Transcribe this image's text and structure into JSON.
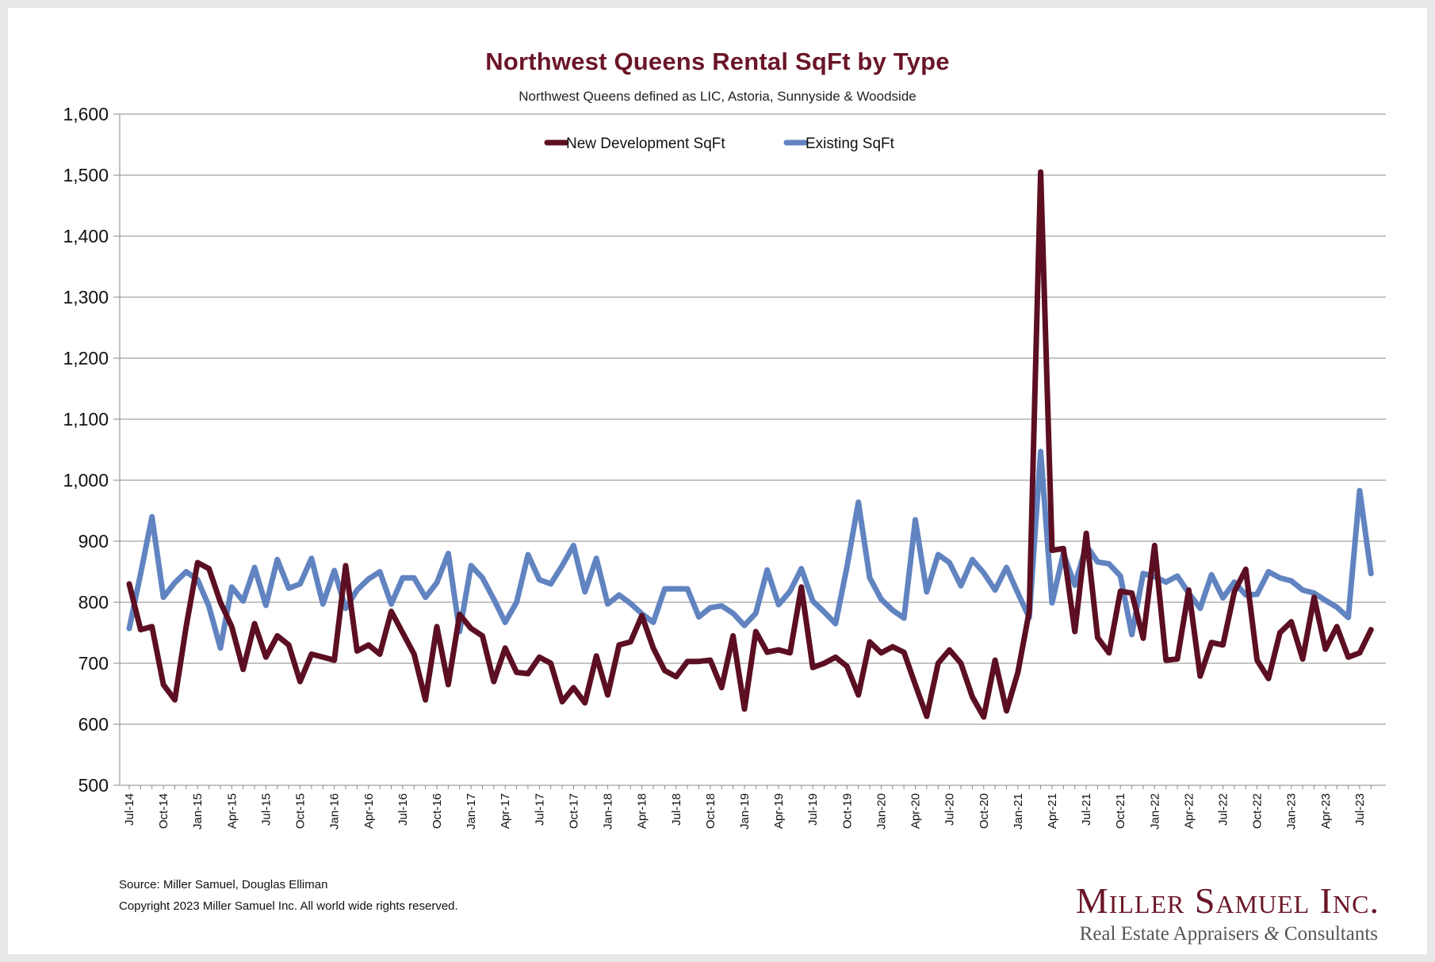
{
  "chart_data": {
    "type": "line",
    "title": "Northwest Queens Rental SqFt by Type",
    "subtitle": "Northwest Queens defined as LIC, Astoria, Sunnyside & Woodside",
    "ylim": [
      500,
      1600
    ],
    "yticks": [
      "500",
      "600",
      "700",
      "800",
      "900",
      "1,000",
      "1,100",
      "1,200",
      "1,300",
      "1,400",
      "1,500",
      "1,600"
    ],
    "ytick_values": [
      500,
      600,
      700,
      800,
      900,
      1000,
      1100,
      1200,
      1300,
      1400,
      1500,
      1600
    ],
    "xticks": [
      "Jul-14",
      "Oct-14",
      "Jan-15",
      "Apr-15",
      "Jul-15",
      "Oct-15",
      "Jan-16",
      "Apr-16",
      "Jul-16",
      "Oct-16",
      "Jan-17",
      "Apr-17",
      "Jul-17",
      "Oct-17",
      "Jan-18",
      "Apr-18",
      "Jul-18",
      "Oct-18",
      "Jan-19",
      "Apr-19",
      "Jul-19",
      "Oct-19",
      "Jan-20",
      "Apr-20",
      "Jul-20",
      "Oct-20",
      "Jan-21",
      "Apr-21",
      "Jul-21",
      "Oct-21",
      "Jan-22",
      "Apr-22",
      "Jul-22",
      "Oct-22",
      "Jan-23",
      "Apr-23",
      "Jul-23"
    ],
    "grid": true,
    "legend_position": "top-center",
    "series": [
      {
        "name": "New Development SqFt",
        "color": "#5c0f22",
        "values": [
          830,
          755,
          760,
          665,
          640,
          760,
          865,
          855,
          800,
          760,
          690,
          765,
          710,
          745,
          730,
          670,
          715,
          710,
          705,
          860,
          720,
          730,
          715,
          785,
          750,
          715,
          640,
          760,
          665,
          780,
          757,
          745,
          670,
          725,
          685,
          683,
          710,
          700,
          637,
          660,
          635,
          712,
          648,
          730,
          735,
          778,
          725,
          688,
          678,
          703,
          703,
          705,
          660,
          745,
          625,
          752,
          718,
          722,
          717,
          825,
          693,
          700,
          710,
          695,
          648,
          735,
          717,
          727,
          718,
          665,
          613,
          700,
          722,
          700,
          645,
          612,
          705,
          622,
          685,
          785,
          1505,
          885,
          888,
          752,
          913,
          742,
          717,
          818,
          815,
          741,
          893,
          705,
          707,
          820,
          679,
          734,
          730,
          817,
          854,
          705,
          675,
          750,
          768,
          707,
          808,
          723,
          760,
          710,
          717,
          755
        ]
      },
      {
        "name": "Existing SqFt",
        "color": "#6184c1",
        "values": [
          757,
          847,
          940,
          808,
          832,
          850,
          837,
          793,
          725,
          825,
          802,
          857,
          795,
          870,
          823,
          830,
          872,
          797,
          852,
          790,
          820,
          838,
          850,
          797,
          840,
          840,
          808,
          832,
          880,
          752,
          860,
          840,
          805,
          767,
          800,
          878,
          837,
          830,
          860,
          893,
          817,
          872,
          797,
          812,
          798,
          781,
          767,
          822,
          822,
          822,
          776,
          791,
          794,
          782,
          762,
          782,
          853,
          796,
          818,
          855,
          802,
          784,
          765,
          858,
          964,
          840,
          805,
          787,
          774,
          935,
          817,
          878,
          865,
          827,
          870,
          848,
          820,
          857,
          815,
          775,
          1047,
          799,
          880,
          828,
          893,
          866,
          863,
          843,
          747,
          847,
          842,
          833,
          843,
          815,
          790,
          845,
          807,
          833,
          812,
          813,
          850,
          840,
          835,
          820,
          815,
          803,
          792,
          775,
          983,
          847
        ]
      }
    ]
  },
  "footer": {
    "source": "Source: Miller Samuel, Douglas Elliman",
    "copyright": "Copyright 2023 Miller Samuel Inc.  All world wide rights reserved."
  },
  "logo": {
    "name": "Miller Samuel Inc.",
    "tagline": "Real Estate Appraisers & Consultants"
  }
}
